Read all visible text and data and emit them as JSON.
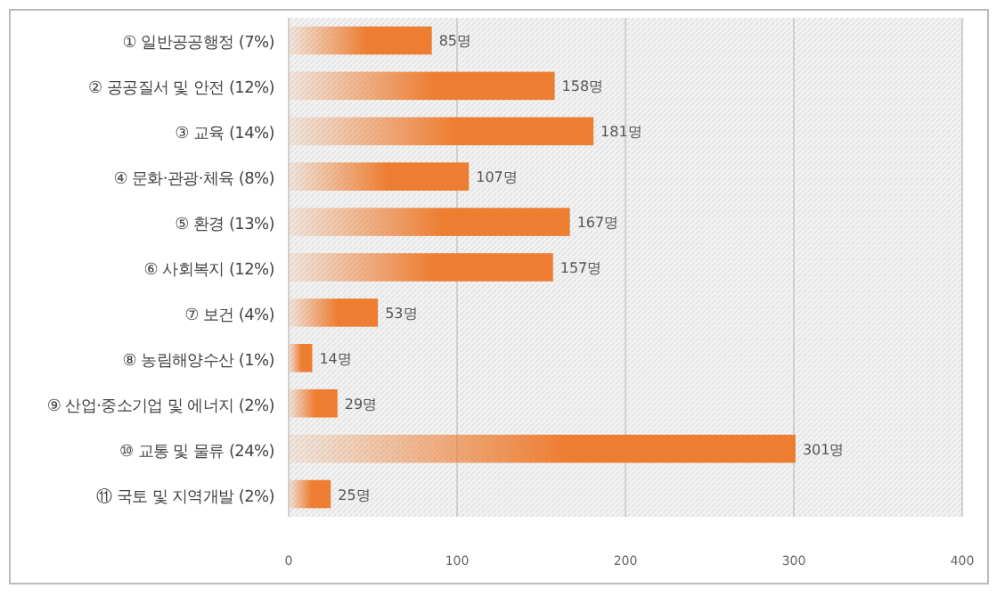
{
  "chart_data": {
    "type": "bar",
    "orientation": "horizontal",
    "categories": [
      "① 일반공공행정 (7%)",
      "② 공공질서 및 안전 (12%)",
      "③ 교육 (14%)",
      "④ 문화·관광·체육 (8%)",
      "⑤ 환경 (13%)",
      "⑥ 사회복지 (12%)",
      "⑦ 보건 (4%)",
      "⑧ 농림해양수산 (1%)",
      "⑨ 산업·중소기업 및 에너지 (2%)",
      "⑩ 교통 및 물류 (24%)",
      "⑪ 국토 및 지역개발 (2%)"
    ],
    "values": [
      85,
      158,
      181,
      107,
      167,
      157,
      53,
      14,
      29,
      301,
      25
    ],
    "value_labels": [
      "85명",
      "158명",
      "181명",
      "107명",
      "167명",
      "157명",
      "53명",
      "14명",
      "29명",
      "301명",
      "25명"
    ],
    "color": "#ed7d31",
    "xlim": [
      0,
      400
    ],
    "xticks": [
      0,
      100,
      200,
      300,
      400
    ],
    "grid": "x"
  }
}
